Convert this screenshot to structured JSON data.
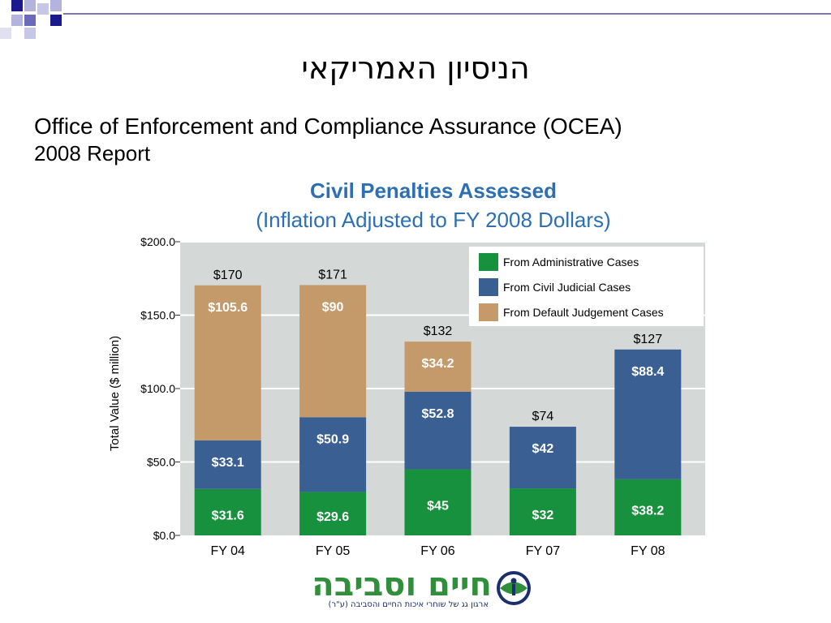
{
  "slide": {
    "title": "הניסיון האמריקאי",
    "subtitle_line1": "Office of Enforcement and Compliance Assurance (OCEA)",
    "subtitle_line2": "2008 Report"
  },
  "logo": {
    "name": "חיים וסביבה",
    "tagline": "ארגון גג של שוחרי איכות החיים והסביבה (ע\"ר)"
  },
  "colors": {
    "administrative": "#17913d",
    "civil_judicial": "#3a5f92",
    "default_judgement": "#c49a6a",
    "plot_background": "#d4d8d6",
    "title_blue": "#2d6fb3"
  },
  "chart_data": {
    "type": "bar",
    "stacked": true,
    "title": "Civil Penalties Assessed",
    "subtitle": "(Inflation Adjusted to FY 2008 Dollars)",
    "ylabel": "Total Value ($ million)",
    "ylim": [
      0,
      200
    ],
    "yticks": [
      "$0.0",
      "$50.0",
      "$100.0",
      "$150.0",
      "$200.0"
    ],
    "ytick_values": [
      0,
      50,
      100,
      150,
      200
    ],
    "categories": [
      "FY 04",
      "FY 05",
      "FY 06",
      "FY 07",
      "FY 08"
    ],
    "totals": [
      "$170",
      "$171",
      "$132",
      "$74",
      "$127"
    ],
    "legend_position": "top-right",
    "grid": true,
    "series": [
      {
        "name": "From Administrative Cases",
        "values": [
          31.6,
          29.6,
          45,
          32,
          38.2
        ],
        "labels": [
          "$31.6",
          "$29.6",
          "$45",
          "$32",
          "$38.2"
        ]
      },
      {
        "name": "From Civil Judicial Cases",
        "values": [
          33.1,
          50.9,
          52.8,
          42,
          88.4
        ],
        "labels": [
          "$33.1",
          "$50.9",
          "$52.8",
          "$42",
          "$88.4"
        ]
      },
      {
        "name": "From Default Judgement Cases",
        "values": [
          105.6,
          90,
          34.2,
          0,
          0
        ],
        "labels": [
          "$105.6",
          "$90",
          "$34.2",
          "",
          ""
        ]
      }
    ]
  }
}
